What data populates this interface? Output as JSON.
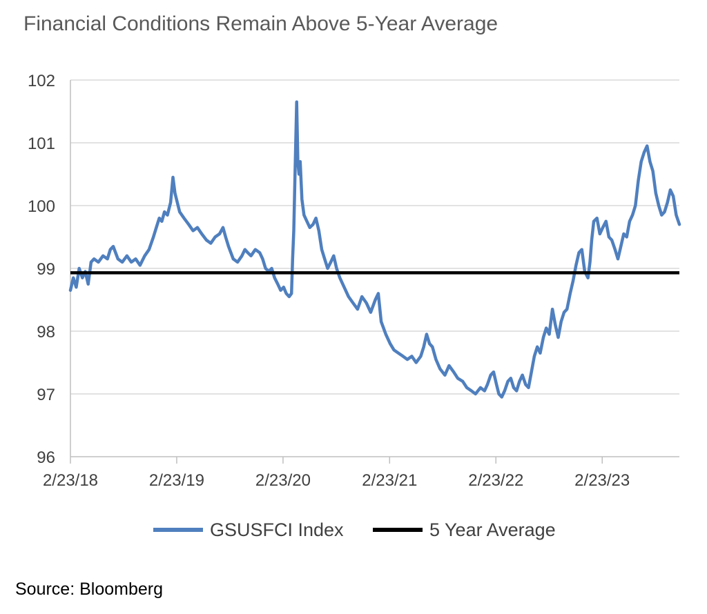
{
  "title": "Financial Conditions Remain Above 5-Year Average",
  "source": "Source: Bloomberg",
  "colors": {
    "series": "#4f7fbe",
    "average": "#000000",
    "grid": "#d9d9d9",
    "axis": "#bfbfbf",
    "text": "#404040"
  },
  "chart_data": {
    "type": "line",
    "title": "Financial Conditions Remain Above 5-Year Average",
    "xlabel": "",
    "ylabel": "",
    "x_axis": {
      "type": "date",
      "range": [
        "2018-02-23",
        "2023-11-15"
      ],
      "tick_labels": [
        "2/23/18",
        "2/23/19",
        "2/23/20",
        "2/23/21",
        "2/23/22",
        "2/23/23"
      ],
      "tick_dates": [
        "2018-02-23",
        "2019-02-23",
        "2020-02-23",
        "2021-02-23",
        "2022-02-23",
        "2023-02-23"
      ]
    },
    "y_axis": {
      "range": [
        96,
        102
      ],
      "ticks": [
        96,
        97,
        98,
        99,
        100,
        101,
        102
      ],
      "tick_labels": [
        "96",
        "97",
        "98",
        "99",
        "100",
        "101",
        "102"
      ]
    },
    "grid": "horizontal",
    "legend_position": "bottom",
    "series": [
      {
        "name": "GSUSFCI Index",
        "color": "#4f7fbe",
        "points": [
          [
            "2018-02-23",
            98.65
          ],
          [
            "2018-03-05",
            98.85
          ],
          [
            "2018-03-15",
            98.7
          ],
          [
            "2018-03-25",
            99.0
          ],
          [
            "2018-04-05",
            98.85
          ],
          [
            "2018-04-15",
            98.95
          ],
          [
            "2018-04-25",
            98.75
          ],
          [
            "2018-05-05",
            99.1
          ],
          [
            "2018-05-15",
            99.15
          ],
          [
            "2018-05-30",
            99.1
          ],
          [
            "2018-06-15",
            99.2
          ],
          [
            "2018-06-30",
            99.15
          ],
          [
            "2018-07-10",
            99.3
          ],
          [
            "2018-07-20",
            99.35
          ],
          [
            "2018-08-05",
            99.15
          ],
          [
            "2018-08-20",
            99.1
          ],
          [
            "2018-09-05",
            99.2
          ],
          [
            "2018-09-20",
            99.1
          ],
          [
            "2018-10-05",
            99.15
          ],
          [
            "2018-10-20",
            99.05
          ],
          [
            "2018-11-05",
            99.2
          ],
          [
            "2018-11-20",
            99.3
          ],
          [
            "2018-12-05",
            99.5
          ],
          [
            "2018-12-15",
            99.65
          ],
          [
            "2018-12-25",
            99.8
          ],
          [
            "2019-01-03",
            99.75
          ],
          [
            "2019-01-12",
            99.9
          ],
          [
            "2019-01-22",
            99.85
          ],
          [
            "2019-02-02",
            100.05
          ],
          [
            "2019-02-10",
            100.45
          ],
          [
            "2019-02-17",
            100.2
          ],
          [
            "2019-02-25",
            100.05
          ],
          [
            "2019-03-05",
            99.9
          ],
          [
            "2019-03-20",
            99.8
          ],
          [
            "2019-04-05",
            99.7
          ],
          [
            "2019-04-20",
            99.6
          ],
          [
            "2019-05-05",
            99.65
          ],
          [
            "2019-05-20",
            99.55
          ],
          [
            "2019-06-05",
            99.45
          ],
          [
            "2019-06-20",
            99.4
          ],
          [
            "2019-07-05",
            99.5
          ],
          [
            "2019-07-20",
            99.55
          ],
          [
            "2019-08-01",
            99.65
          ],
          [
            "2019-08-10",
            99.5
          ],
          [
            "2019-08-20",
            99.35
          ],
          [
            "2019-09-05",
            99.15
          ],
          [
            "2019-09-20",
            99.1
          ],
          [
            "2019-10-05",
            99.2
          ],
          [
            "2019-10-15",
            99.3
          ],
          [
            "2019-10-25",
            99.25
          ],
          [
            "2019-11-05",
            99.2
          ],
          [
            "2019-11-20",
            99.3
          ],
          [
            "2019-12-05",
            99.25
          ],
          [
            "2019-12-15",
            99.15
          ],
          [
            "2019-12-25",
            99.0
          ],
          [
            "2020-01-05",
            98.95
          ],
          [
            "2020-01-15",
            99.0
          ],
          [
            "2020-01-25",
            98.85
          ],
          [
            "2020-02-05",
            98.75
          ],
          [
            "2020-02-15",
            98.65
          ],
          [
            "2020-02-25",
            98.7
          ],
          [
            "2020-03-05",
            98.6
          ],
          [
            "2020-03-15",
            98.55
          ],
          [
            "2020-03-23",
            98.6
          ],
          [
            "2020-03-27",
            99.15
          ],
          [
            "2020-03-31",
            99.6
          ],
          [
            "2020-04-04",
            100.45
          ],
          [
            "2020-04-10",
            101.65
          ],
          [
            "2020-04-14",
            100.7
          ],
          [
            "2020-04-18",
            100.5
          ],
          [
            "2020-04-22",
            100.7
          ],
          [
            "2020-04-28",
            100.1
          ],
          [
            "2020-05-05",
            99.85
          ],
          [
            "2020-05-15",
            99.75
          ],
          [
            "2020-05-25",
            99.65
          ],
          [
            "2020-06-05",
            99.7
          ],
          [
            "2020-06-15",
            99.8
          ],
          [
            "2020-06-25",
            99.6
          ],
          [
            "2020-07-05",
            99.3
          ],
          [
            "2020-07-15",
            99.15
          ],
          [
            "2020-07-25",
            99.0
          ],
          [
            "2020-08-05",
            99.1
          ],
          [
            "2020-08-15",
            99.2
          ],
          [
            "2020-08-25",
            99.0
          ],
          [
            "2020-09-05",
            98.85
          ],
          [
            "2020-09-20",
            98.7
          ],
          [
            "2020-10-05",
            98.55
          ],
          [
            "2020-10-20",
            98.45
          ],
          [
            "2020-11-05",
            98.35
          ],
          [
            "2020-11-20",
            98.55
          ],
          [
            "2020-12-05",
            98.45
          ],
          [
            "2020-12-20",
            98.3
          ],
          [
            "2021-01-05",
            98.5
          ],
          [
            "2021-01-15",
            98.6
          ],
          [
            "2021-01-25",
            98.15
          ],
          [
            "2021-02-10",
            97.95
          ],
          [
            "2021-02-25",
            97.8
          ],
          [
            "2021-03-10",
            97.7
          ],
          [
            "2021-03-25",
            97.65
          ],
          [
            "2021-04-10",
            97.6
          ],
          [
            "2021-04-25",
            97.55
          ],
          [
            "2021-05-10",
            97.6
          ],
          [
            "2021-05-25",
            97.5
          ],
          [
            "2021-06-10",
            97.6
          ],
          [
            "2021-06-20",
            97.75
          ],
          [
            "2021-06-30",
            97.95
          ],
          [
            "2021-07-10",
            97.8
          ],
          [
            "2021-07-20",
            97.75
          ],
          [
            "2021-08-01",
            97.55
          ],
          [
            "2021-08-15",
            97.4
          ],
          [
            "2021-09-01",
            97.3
          ],
          [
            "2021-09-15",
            97.45
          ],
          [
            "2021-10-01",
            97.35
          ],
          [
            "2021-10-15",
            97.25
          ],
          [
            "2021-11-01",
            97.2
          ],
          [
            "2021-11-15",
            97.1
          ],
          [
            "2021-12-01",
            97.05
          ],
          [
            "2021-12-15",
            97.0
          ],
          [
            "2022-01-01",
            97.1
          ],
          [
            "2022-01-15",
            97.05
          ],
          [
            "2022-01-25",
            97.15
          ],
          [
            "2022-02-05",
            97.3
          ],
          [
            "2022-02-15",
            97.35
          ],
          [
            "2022-02-25",
            97.15
          ],
          [
            "2022-03-05",
            97.0
          ],
          [
            "2022-03-15",
            96.95
          ],
          [
            "2022-03-25",
            97.05
          ],
          [
            "2022-04-05",
            97.2
          ],
          [
            "2022-04-15",
            97.25
          ],
          [
            "2022-04-25",
            97.1
          ],
          [
            "2022-05-05",
            97.05
          ],
          [
            "2022-05-15",
            97.2
          ],
          [
            "2022-05-25",
            97.3
          ],
          [
            "2022-06-05",
            97.15
          ],
          [
            "2022-06-15",
            97.1
          ],
          [
            "2022-06-25",
            97.35
          ],
          [
            "2022-07-05",
            97.6
          ],
          [
            "2022-07-15",
            97.75
          ],
          [
            "2022-07-25",
            97.65
          ],
          [
            "2022-08-05",
            97.9
          ],
          [
            "2022-08-15",
            98.05
          ],
          [
            "2022-08-25",
            97.95
          ],
          [
            "2022-09-05",
            98.35
          ],
          [
            "2022-09-15",
            98.1
          ],
          [
            "2022-09-25",
            97.9
          ],
          [
            "2022-10-05",
            98.15
          ],
          [
            "2022-10-15",
            98.3
          ],
          [
            "2022-10-25",
            98.35
          ],
          [
            "2022-11-05",
            98.6
          ],
          [
            "2022-11-15",
            98.8
          ],
          [
            "2022-11-25",
            99.05
          ],
          [
            "2022-12-05",
            99.25
          ],
          [
            "2022-12-15",
            99.3
          ],
          [
            "2022-12-25",
            98.95
          ],
          [
            "2023-01-05",
            98.85
          ],
          [
            "2023-01-12",
            99.1
          ],
          [
            "2023-01-18",
            99.45
          ],
          [
            "2023-01-25",
            99.75
          ],
          [
            "2023-02-05",
            99.8
          ],
          [
            "2023-02-15",
            99.55
          ],
          [
            "2023-02-25",
            99.65
          ],
          [
            "2023-03-08",
            99.75
          ],
          [
            "2023-03-18",
            99.5
          ],
          [
            "2023-03-28",
            99.45
          ],
          [
            "2023-04-08",
            99.3
          ],
          [
            "2023-04-18",
            99.15
          ],
          [
            "2023-04-28",
            99.35
          ],
          [
            "2023-05-08",
            99.55
          ],
          [
            "2023-05-18",
            99.5
          ],
          [
            "2023-05-28",
            99.75
          ],
          [
            "2023-06-07",
            99.85
          ],
          [
            "2023-06-17",
            100.0
          ],
          [
            "2023-06-27",
            100.4
          ],
          [
            "2023-07-07",
            100.7
          ],
          [
            "2023-07-17",
            100.85
          ],
          [
            "2023-07-27",
            100.95
          ],
          [
            "2023-08-06",
            100.7
          ],
          [
            "2023-08-16",
            100.55
          ],
          [
            "2023-08-26",
            100.2
          ],
          [
            "2023-09-05",
            100.0
          ],
          [
            "2023-09-15",
            99.85
          ],
          [
            "2023-09-25",
            99.9
          ],
          [
            "2023-10-05",
            100.05
          ],
          [
            "2023-10-15",
            100.25
          ],
          [
            "2023-10-25",
            100.15
          ],
          [
            "2023-11-04",
            99.85
          ],
          [
            "2023-11-15",
            99.7
          ]
        ]
      },
      {
        "name": "5 Year Average",
        "color": "#000000",
        "constant": 98.93
      }
    ]
  }
}
